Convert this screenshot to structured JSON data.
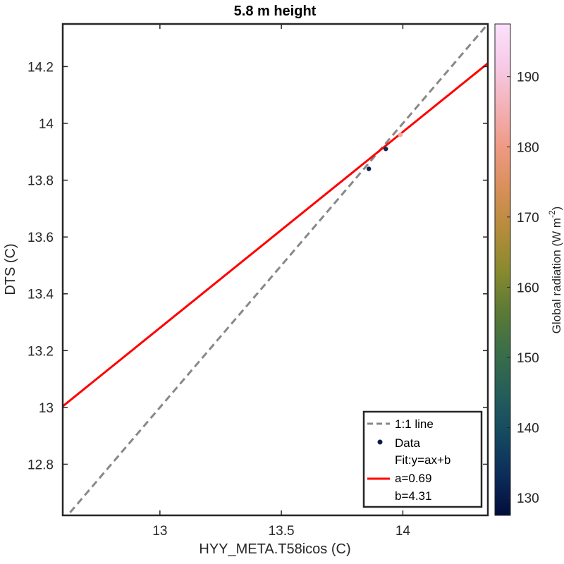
{
  "chart_data": {
    "type": "scatter",
    "title": "5.8 m height",
    "xlabel": "HYY_META.T58icos (C)",
    "ylabel": "DTS (C)",
    "xlim": [
      12.6,
      14.35
    ],
    "ylim": [
      12.62,
      14.35
    ],
    "xticks": [
      "13",
      "13.5",
      "14"
    ],
    "xtick_values": [
      13,
      13.5,
      14
    ],
    "yticks": [
      "12.8",
      "13",
      "13.2",
      "13.4",
      "13.6",
      "13.8",
      "14",
      "14.2"
    ],
    "ytick_values": [
      12.8,
      13.0,
      13.2,
      13.4,
      13.6,
      13.8,
      14.0,
      14.2
    ],
    "grid": false,
    "legend_placement": "bottom-right",
    "series": [
      {
        "name": "1:1 line",
        "kind": "line",
        "style": "dashed",
        "color": "#888888",
        "x": [
          12.6,
          14.35
        ],
        "y": [
          12.6,
          14.35
        ]
      },
      {
        "name": "Data",
        "kind": "scatter",
        "points": [
          {
            "x": 13.86,
            "y": 13.84,
            "radiation": 128,
            "color": "#0a1d4a"
          },
          {
            "x": 13.93,
            "y": 13.91,
            "radiation": 133,
            "color": "#102a5a"
          },
          {
            "x": 13.99,
            "y": 13.96,
            "radiation": 188,
            "color": "#f2a99a"
          }
        ]
      },
      {
        "name": "a=0.69",
        "kind": "fit",
        "color": "#ff0000",
        "slope": 0.69,
        "intercept": 4.31
      }
    ],
    "legend": {
      "line_label": "1:1 line",
      "data_label": "Data",
      "fit_title": "Fit:y=ax+b",
      "fit_a": "a=0.69",
      "fit_b": "b=4.31"
    },
    "colorbar": {
      "label": "Global radiation (W m",
      "label_superscript": "-2",
      "label_close": ")",
      "range": [
        127.5,
        197.5
      ],
      "ticks": [
        "130",
        "140",
        "150",
        "160",
        "170",
        "180",
        "190"
      ],
      "tick_values": [
        130,
        140,
        150,
        160,
        170,
        180,
        190
      ],
      "colormap": [
        "#020d3b",
        "#0c2d5a",
        "#154a61",
        "#255e5a",
        "#3b6e48",
        "#5c7a35",
        "#8a8a2e",
        "#b58c3b",
        "#d98f5a",
        "#ef9a84",
        "#f3b2b8",
        "#f6cbe8",
        "#fbe1fb"
      ]
    }
  }
}
